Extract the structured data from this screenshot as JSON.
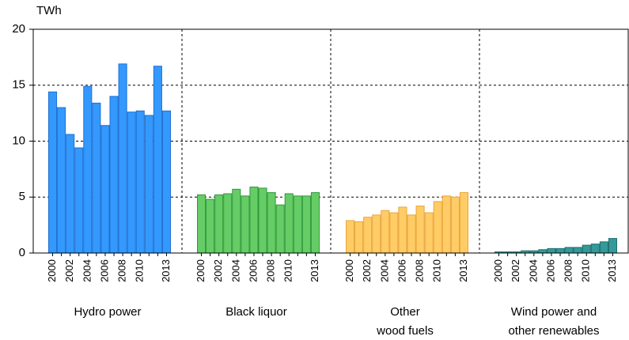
{
  "chart_data": {
    "type": "grouped-bar",
    "y_label": "TWh",
    "categories": [
      "2000",
      null,
      "2002",
      null,
      "2004",
      null,
      "2006",
      null,
      "2008",
      null,
      "2010",
      null,
      null,
      "2013"
    ],
    "groups": [
      {
        "name": [
          "Hydro power"
        ],
        "color": "#3399ff",
        "edge": "#1f6fd1",
        "values": [
          14.4,
          13.0,
          10.6,
          9.4,
          14.9,
          13.4,
          11.4,
          14.0,
          16.9,
          12.6,
          12.7,
          12.3,
          16.7,
          12.7
        ]
      },
      {
        "name": [
          "Black liquor"
        ],
        "color": "#66cc66",
        "edge": "#2f9a3a",
        "values": [
          5.2,
          4.8,
          5.2,
          5.3,
          5.7,
          5.1,
          5.9,
          5.8,
          5.4,
          4.3,
          5.3,
          5.1,
          5.1,
          5.4
        ]
      },
      {
        "name": [
          "Other",
          "wood fuels"
        ],
        "color": "#ffcc66",
        "edge": "#eba53a",
        "values": [
          2.9,
          2.8,
          3.2,
          3.4,
          3.8,
          3.6,
          4.1,
          3.4,
          4.2,
          3.6,
          4.6,
          5.1,
          5.0,
          5.4
        ]
      },
      {
        "name": [
          "Wind power and",
          "other renewables"
        ],
        "color": "#339999",
        "edge": "#1d6d6d",
        "values": [
          0.1,
          0.1,
          0.1,
          0.2,
          0.2,
          0.3,
          0.4,
          0.4,
          0.5,
          0.5,
          0.7,
          0.8,
          1.0,
          1.3
        ]
      }
    ],
    "ylim": [
      0,
      20
    ],
    "yticks": [
      0,
      5,
      10,
      15,
      20
    ],
    "grid": true
  }
}
